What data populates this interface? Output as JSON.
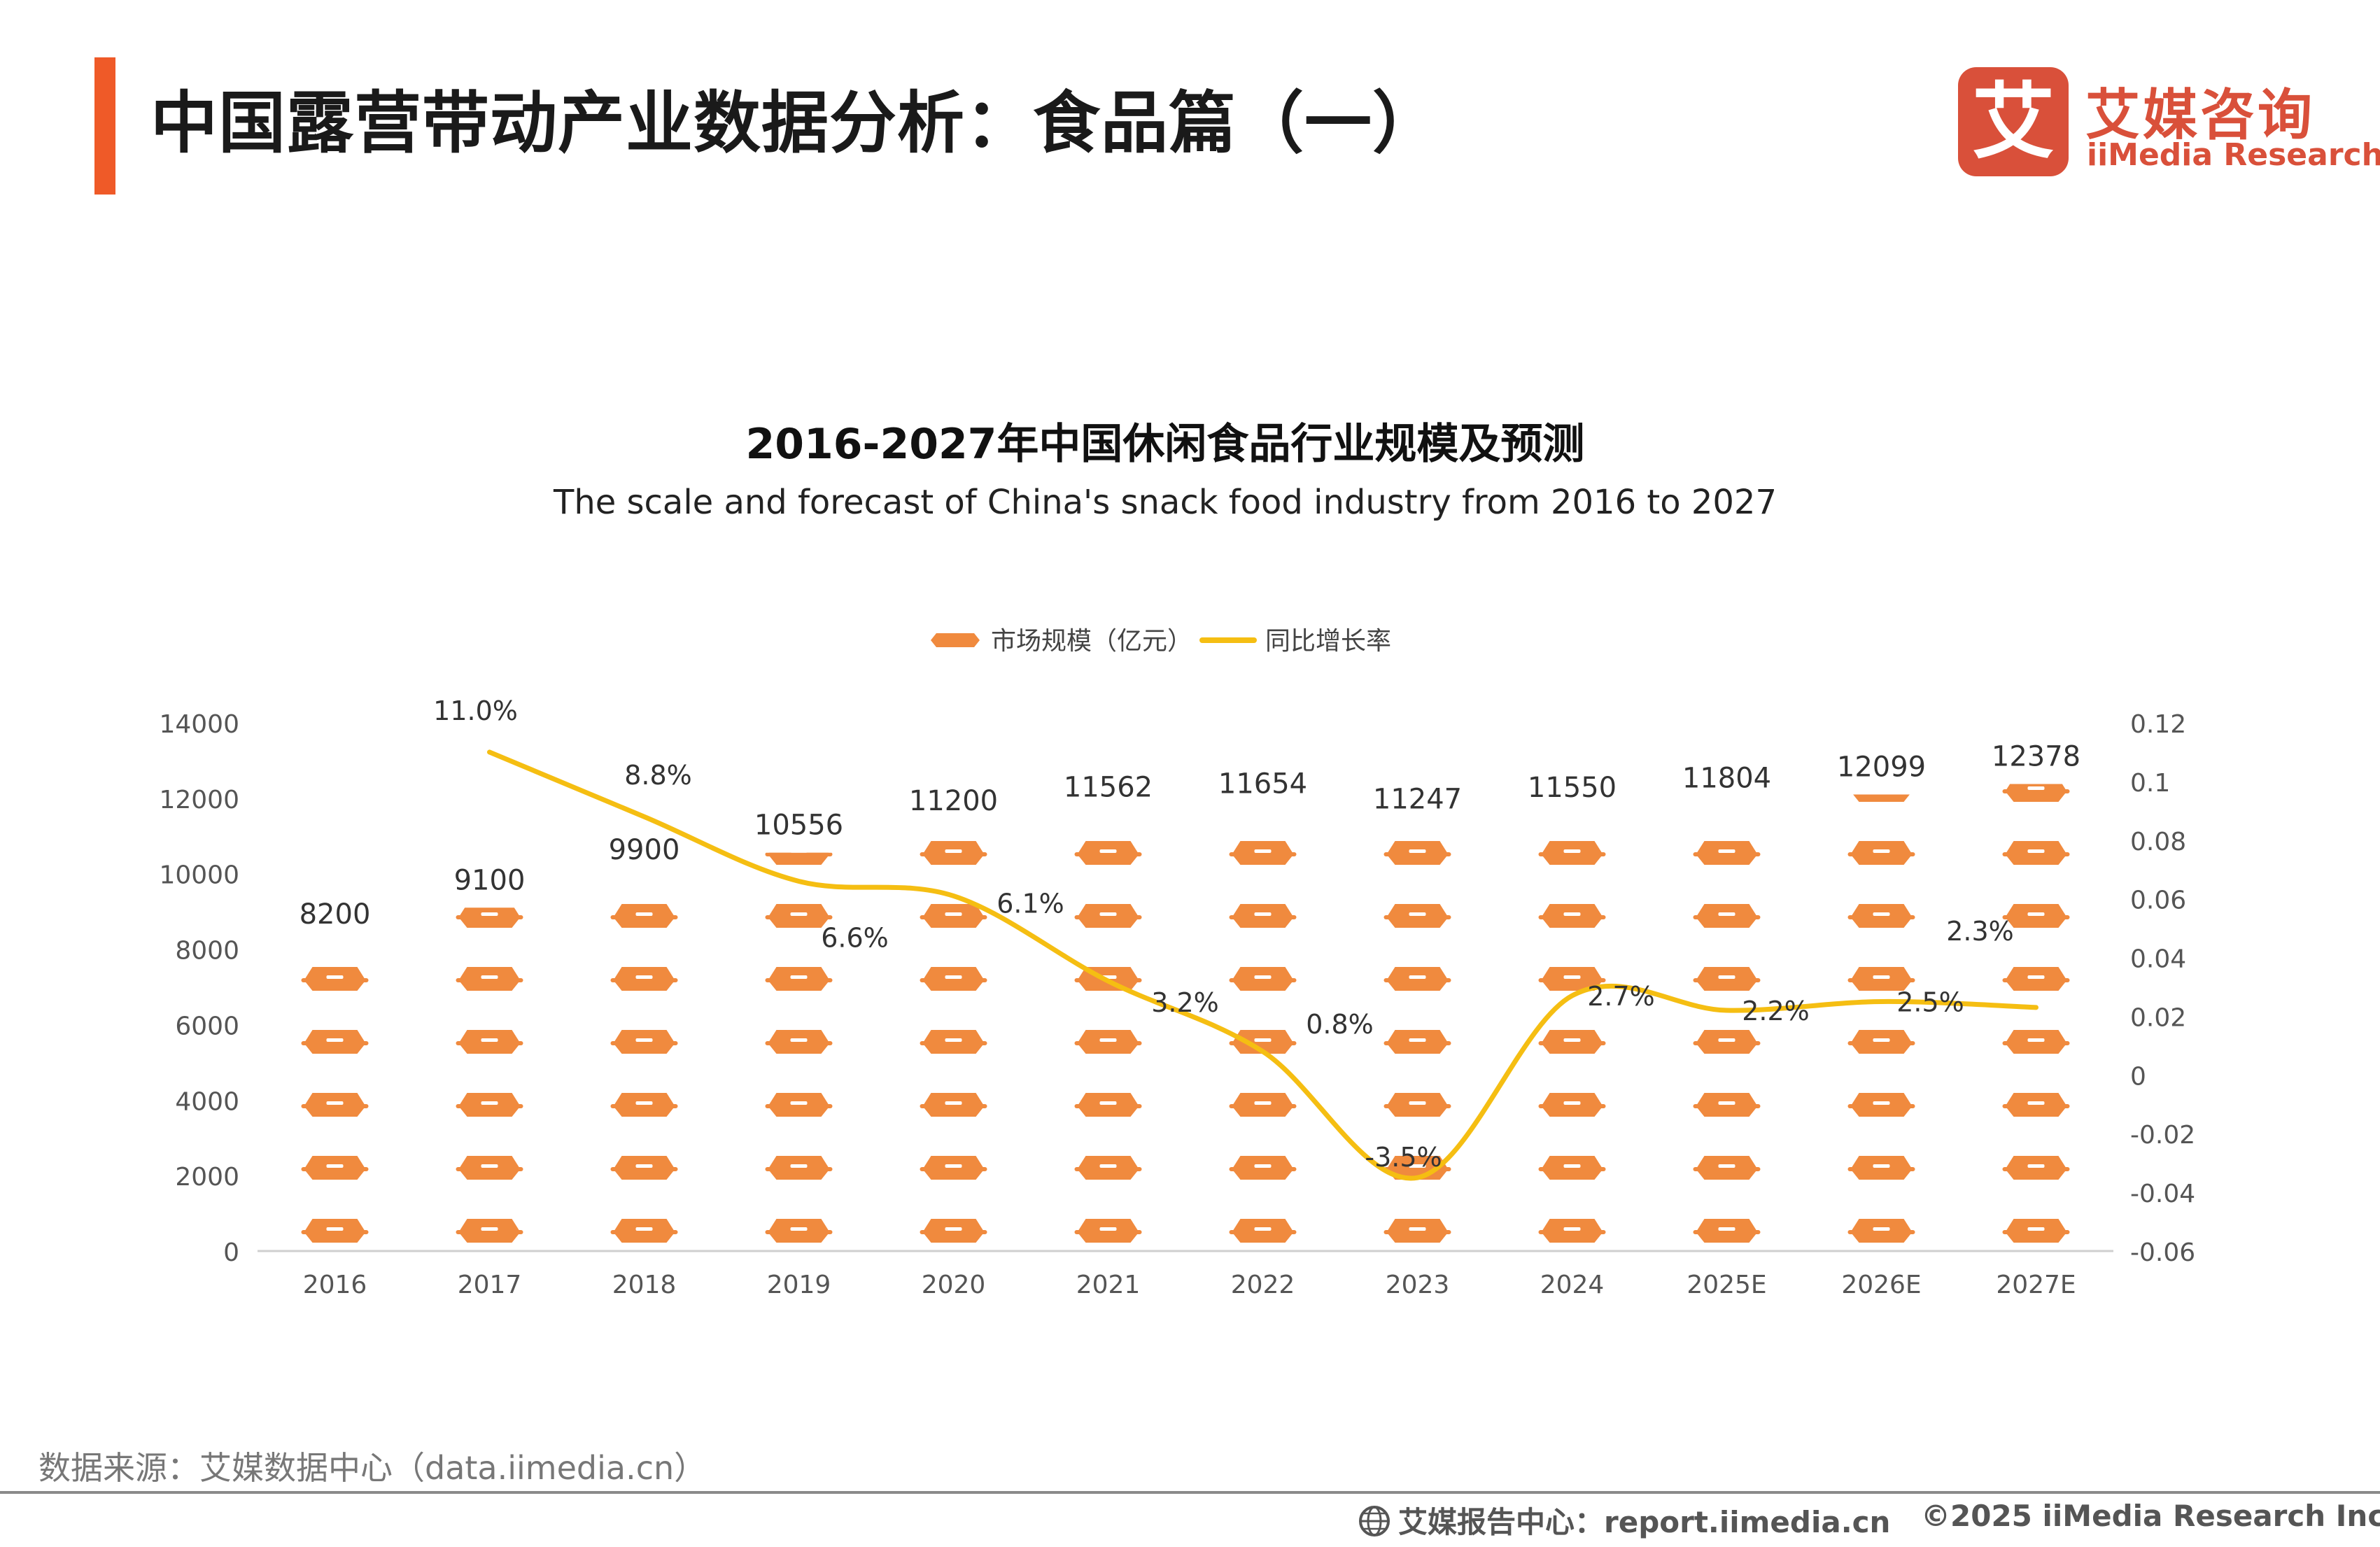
{
  "page": {
    "title": "中国露营带动产业数据分析：食品篇（一）",
    "accent_color": "#ef5a28"
  },
  "logo": {
    "icon_char": "艾",
    "name_cn": "艾媒咨询",
    "name_en": "iiMedia Research",
    "color": "#d9503a"
  },
  "chart_data": {
    "type": "bar",
    "title": "2016-2027年中国休闲食品行业规模及预测",
    "subtitle": "The scale and forecast of China's snack food industry from 2016 to 2027",
    "categories": [
      "2016",
      "2017",
      "2018",
      "2019",
      "2020",
      "2021",
      "2022",
      "2023",
      "2024",
      "2025E",
      "2026E",
      "2027E"
    ],
    "series": [
      {
        "name": "市场规模（亿元）",
        "type": "pictorial-bar",
        "axis": "left",
        "color": "#f08a3e",
        "values": [
          8200,
          9100,
          9900,
          10556,
          11200,
          11562,
          11654,
          11247,
          11550,
          11804,
          12099,
          12378
        ],
        "value_labels": [
          "8200",
          "9100",
          "9900",
          "10556",
          "11200",
          "11562",
          "11654",
          "11247",
          "11550",
          "11804",
          "12099",
          "12378"
        ]
      },
      {
        "name": "同比增长率",
        "type": "line",
        "axis": "right",
        "color": "#f5be12",
        "values": [
          null,
          0.11,
          0.088,
          0.066,
          0.061,
          0.032,
          0.008,
          -0.035,
          0.027,
          0.022,
          0.025,
          0.023
        ],
        "value_labels": [
          "",
          "11.0%",
          "8.8%",
          "6.6%",
          "6.1%",
          "3.2%",
          "0.8%",
          "-3.5%",
          "2.7%",
          "2.2%",
          "2.5%",
          "2.3%"
        ]
      }
    ],
    "y_left": {
      "min": 0,
      "max": 14000,
      "ticks": [
        "0",
        "2000",
        "4000",
        "6000",
        "8000",
        "10000",
        "12000",
        "14000"
      ]
    },
    "y_right": {
      "min": -0.06,
      "max": 0.12,
      "ticks": [
        "-0.06",
        "-0.04",
        "-0.02",
        "0",
        "0.02",
        "0.04",
        "0.06",
        "0.08",
        "0.1",
        "0.12"
      ]
    },
    "legend_position": "top-center",
    "grid": false
  },
  "footer": {
    "source": "数据来源：艾媒数据中心（data.iimedia.cn）",
    "report_center": "艾媒报告中心：report.iimedia.cn",
    "copyright": "©2025  iiMedia Research  Inc"
  }
}
